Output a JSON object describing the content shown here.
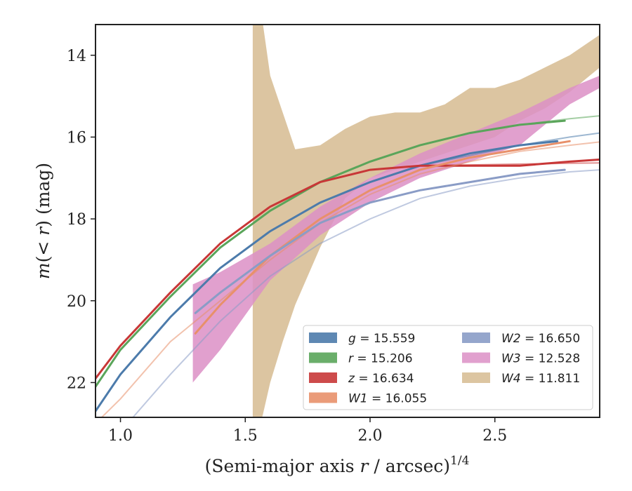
{
  "chart_data": {
    "type": "line",
    "title": "",
    "xlabel": "(Semi-major axis r / arcsec)",
    "xlabel_parts": {
      "pre": "(Semi-major axis ",
      "var": "r",
      "post": " / arcsec)",
      "sup": "1/4"
    },
    "ylabel": "m(< r) (mag)",
    "ylabel_parts": {
      "a": "m",
      "b": "(< ",
      "c": "r",
      "d": ") (mag)"
    },
    "xlim": [
      0.9,
      2.92
    ],
    "ylim": [
      22.85,
      13.25
    ],
    "y_inverted": true,
    "grid": false,
    "legend_position": "lower right",
    "xticks": [
      1.0,
      1.5,
      2.0,
      2.5
    ],
    "xtick_labels": [
      "1.0",
      "1.5",
      "2.0",
      "2.5"
    ],
    "yticks": [
      14,
      16,
      18,
      20,
      22
    ],
    "ytick_labels": [
      "14",
      "16",
      "18",
      "20",
      "22"
    ],
    "series": [
      {
        "name": "g = 15.559",
        "label_var": "g",
        "label_val": "15.559",
        "color": "#4c7bab",
        "kind": "line",
        "x": [
          0.9,
          1.0,
          1.2,
          1.4,
          1.6,
          1.8,
          2.0,
          2.2,
          2.4,
          2.6,
          2.75
        ],
        "y": [
          22.7,
          21.8,
          20.4,
          19.2,
          18.3,
          17.6,
          17.1,
          16.7,
          16.4,
          16.2,
          16.1
        ],
        "fit": {
          "x": [
            1.0,
            1.2,
            1.4,
            1.6,
            1.8,
            2.0,
            2.2,
            2.4,
            2.6,
            2.8,
            2.92
          ],
          "y": [
            21.8,
            20.4,
            19.2,
            18.3,
            17.6,
            17.1,
            16.7,
            16.45,
            16.2,
            16.0,
            15.9
          ]
        }
      },
      {
        "name": "r = 15.206",
        "label_var": "r",
        "label_val": "15.206",
        "color": "#5aa55a",
        "kind": "line",
        "x": [
          0.9,
          1.0,
          1.2,
          1.4,
          1.6,
          1.8,
          2.0,
          2.2,
          2.4,
          2.6,
          2.78
        ],
        "y": [
          22.1,
          21.2,
          19.9,
          18.7,
          17.8,
          17.1,
          16.6,
          16.2,
          15.9,
          15.7,
          15.6
        ],
        "fit": {
          "x": [
            1.0,
            1.2,
            1.4,
            1.6,
            1.8,
            2.0,
            2.2,
            2.4,
            2.6,
            2.8,
            2.92
          ],
          "y": [
            21.2,
            19.9,
            18.7,
            17.8,
            17.1,
            16.6,
            16.2,
            15.9,
            15.7,
            15.55,
            15.48
          ]
        }
      },
      {
        "name": "z = 16.634",
        "label_var": "z",
        "label_val": "16.634",
        "color": "#c83737",
        "kind": "line",
        "x": [
          0.9,
          1.0,
          1.2,
          1.4,
          1.6,
          1.8,
          2.0,
          2.2,
          2.4,
          2.6,
          2.8,
          2.92
        ],
        "y": [
          21.9,
          21.1,
          19.8,
          18.6,
          17.7,
          17.1,
          16.8,
          16.7,
          16.7,
          16.7,
          16.6,
          16.55
        ],
        "fit": {
          "x": [
            1.0,
            1.2,
            1.4,
            1.6,
            1.8,
            2.0,
            2.2,
            2.4,
            2.6,
            2.8,
            2.92
          ],
          "y": [
            21.1,
            19.8,
            18.6,
            17.7,
            17.1,
            16.8,
            16.7,
            16.68,
            16.66,
            16.64,
            16.63
          ]
        }
      },
      {
        "name": "W1 = 16.055",
        "label_var": "W1",
        "label_val": "16.055",
        "color": "#e8906a",
        "kind": "line",
        "x": [
          1.3,
          1.4,
          1.6,
          1.8,
          2.0,
          2.2,
          2.4,
          2.6,
          2.8
        ],
        "y": [
          20.8,
          20.1,
          18.9,
          18.0,
          17.3,
          16.8,
          16.5,
          16.3,
          16.1
        ],
        "fit": {
          "x": [
            0.9,
            1.0,
            1.2,
            1.4,
            1.6,
            1.8,
            2.0,
            2.2,
            2.4,
            2.6,
            2.8,
            2.92
          ],
          "y": [
            23.0,
            22.4,
            21.0,
            20.0,
            19.0,
            18.1,
            17.4,
            16.9,
            16.6,
            16.35,
            16.2,
            16.12
          ]
        }
      },
      {
        "name": "W2 = 16.650",
        "label_var": "W2",
        "label_val": "16.650",
        "color": "#8a9cc6",
        "kind": "line",
        "x": [
          1.3,
          1.4,
          1.6,
          1.8,
          2.0,
          2.2,
          2.4,
          2.6,
          2.78
        ],
        "y": [
          20.3,
          19.8,
          18.9,
          18.1,
          17.6,
          17.3,
          17.1,
          16.9,
          16.8
        ],
        "fit": {
          "x": [
            1.05,
            1.2,
            1.4,
            1.6,
            1.8,
            2.0,
            2.2,
            2.4,
            2.6,
            2.8,
            2.92
          ],
          "y": [
            22.85,
            21.8,
            20.5,
            19.4,
            18.6,
            18.0,
            17.5,
            17.2,
            17.0,
            16.85,
            16.8
          ]
        }
      },
      {
        "name": "W3 = 12.528",
        "label_var": "W3",
        "label_val": "12.528",
        "color": "#dc8fc5",
        "kind": "band",
        "x": [
          1.29,
          1.4,
          1.6,
          1.8,
          2.0,
          2.2,
          2.4,
          2.6,
          2.8,
          2.92
        ],
        "y_low": [
          22.0,
          21.2,
          19.5,
          18.4,
          17.6,
          17.0,
          16.6,
          16.2,
          15.2,
          14.8
        ],
        "y_high": [
          19.6,
          19.3,
          18.6,
          17.7,
          17.0,
          16.4,
          15.9,
          15.4,
          14.8,
          14.5
        ]
      },
      {
        "name": "W4 = 11.811",
        "label_var": "W4",
        "label_val": "11.811",
        "color": "#d6bb90",
        "kind": "band",
        "x": [
          1.53,
          1.57,
          1.6,
          1.65,
          1.7,
          1.8,
          1.9,
          2.0,
          2.1,
          2.2,
          2.3,
          2.4,
          2.5,
          2.6,
          2.7,
          2.8,
          2.92
        ],
        "y_low": [
          23.5,
          22.8,
          22.0,
          21.0,
          20.1,
          18.7,
          17.5,
          17.0,
          16.8,
          16.6,
          16.4,
          16.2,
          16.0,
          15.6,
          15.3,
          14.9,
          14.3
        ],
        "y_high": [
          13.2,
          13.2,
          14.5,
          15.4,
          16.3,
          16.2,
          15.8,
          15.5,
          15.4,
          15.4,
          15.2,
          14.8,
          14.8,
          14.6,
          14.3,
          14.0,
          13.5
        ]
      }
    ],
    "legend": {
      "col1": [
        "g = 15.559",
        "r = 15.206",
        "z = 16.634",
        "W1 = 16.055"
      ],
      "col2": [
        "W2 = 16.650",
        "W3 = 12.528",
        "W4 = 11.811"
      ]
    }
  }
}
